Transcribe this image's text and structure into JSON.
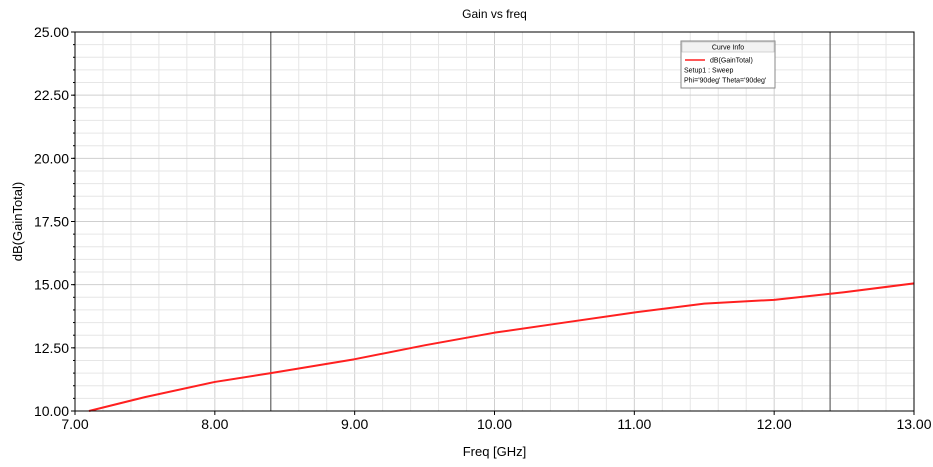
{
  "chart_data": {
    "type": "line",
    "title": "Gain vs freq",
    "xlabel": "Freq [GHz]",
    "ylabel": "dB(GainTotal)",
    "xlim": [
      7.0,
      13.0
    ],
    "ylim": [
      10.0,
      25.0
    ],
    "x_ticks": [
      "7.00",
      "8.00",
      "9.00",
      "10.00",
      "11.00",
      "12.00",
      "13.00"
    ],
    "y_ticks": [
      "10.00",
      "12.50",
      "15.00",
      "17.50",
      "20.00",
      "22.50",
      "25.00"
    ],
    "grid": true,
    "markers_x": [
      8.4,
      12.4
    ],
    "legend": {
      "title": "Curve Info",
      "position": "top-right",
      "entries": [
        {
          "label": "dB(GainTotal)",
          "setup": "Setup1 : Sweep",
          "params": "Phi='90deg' Theta='90deg'"
        }
      ]
    },
    "series": [
      {
        "name": "dB(GainTotal)",
        "color": "#ff2020",
        "x": [
          7.1,
          7.5,
          8.0,
          8.4,
          9.0,
          9.5,
          10.0,
          10.5,
          11.0,
          11.5,
          12.0,
          12.5,
          13.0
        ],
        "y": [
          10.0,
          10.55,
          11.15,
          11.5,
          12.05,
          12.6,
          13.1,
          13.5,
          13.9,
          14.25,
          14.4,
          14.7,
          15.05
        ]
      }
    ]
  }
}
